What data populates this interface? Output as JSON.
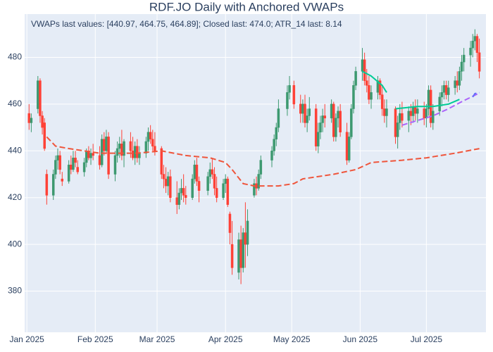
{
  "chart_data": {
    "type": "candlestick",
    "title": "RDF.JO Daily with Anchored VWAPs",
    "annotation": "VWAPs last values: [440.97, 464.75, 464.89]; Closed last: 474.0; ATR_14 last: 8.14",
    "increasing_color": "#3D9970",
    "decreasing_color": "#FF4136",
    "xlim": [
      "2024-12-31",
      "2025-07-28"
    ],
    "xticks": [
      {
        "value": "2025-01-01",
        "label": "Jan 2025"
      },
      {
        "value": "2025-02-01",
        "label": "Feb 2025"
      },
      {
        "value": "2025-03-01",
        "label": "Mar 2025"
      },
      {
        "value": "2025-04-01",
        "label": "Apr 2025"
      },
      {
        "value": "2025-05-01",
        "label": "May 2025"
      },
      {
        "value": "2025-06-01",
        "label": "Jun 2025"
      },
      {
        "value": "2025-07-01",
        "label": "Jul 2025"
      }
    ],
    "ylim": [
      362.4,
      498.5
    ],
    "yticks": [
      380,
      400,
      420,
      440,
      460,
      480
    ],
    "grid": true,
    "x": [
      "2025-01-02",
      "2025-01-03",
      "2025-01-06",
      "2025-01-07",
      "2025-01-08",
      "2025-01-09",
      "2025-01-10",
      "2025-01-13",
      "2025-01-14",
      "2025-01-15",
      "2025-01-16",
      "2025-01-17",
      "2025-01-20",
      "2025-01-21",
      "2025-01-22",
      "2025-01-23",
      "2025-01-24",
      "2025-01-27",
      "2025-01-28",
      "2025-01-29",
      "2025-01-30",
      "2025-01-31",
      "2025-02-03",
      "2025-02-04",
      "2025-02-05",
      "2025-02-06",
      "2025-02-07",
      "2025-02-10",
      "2025-02-11",
      "2025-02-12",
      "2025-02-13",
      "2025-02-14",
      "2025-02-17",
      "2025-02-18",
      "2025-02-19",
      "2025-02-20",
      "2025-02-21",
      "2025-02-24",
      "2025-02-25",
      "2025-02-26",
      "2025-02-27",
      "2025-02-28",
      "2025-03-03",
      "2025-03-04",
      "2025-03-05",
      "2025-03-06",
      "2025-03-07",
      "2025-03-10",
      "2025-03-11",
      "2025-03-12",
      "2025-03-13",
      "2025-03-14",
      "2025-03-17",
      "2025-03-18",
      "2025-03-19",
      "2025-03-20",
      "2025-03-24",
      "2025-03-25",
      "2025-03-26",
      "2025-03-27",
      "2025-03-28",
      "2025-03-31",
      "2025-04-01",
      "2025-04-02",
      "2025-04-03",
      "2025-04-04",
      "2025-04-07",
      "2025-04-08",
      "2025-04-09",
      "2025-04-10",
      "2025-04-11",
      "2025-04-14",
      "2025-04-15",
      "2025-04-16",
      "2025-04-17",
      "2025-04-22",
      "2025-04-23",
      "2025-04-24",
      "2025-04-25",
      "2025-04-29",
      "2025-04-30",
      "2025-05-02",
      "2025-05-05",
      "2025-05-06",
      "2025-05-07",
      "2025-05-08",
      "2025-05-09",
      "2025-05-12",
      "2025-05-13",
      "2025-05-14",
      "2025-05-15",
      "2025-05-16",
      "2025-05-19",
      "2025-05-20",
      "2025-05-21",
      "2025-05-22",
      "2025-05-23",
      "2025-05-26",
      "2025-05-27",
      "2025-05-28",
      "2025-05-29",
      "2025-05-30",
      "2025-06-02",
      "2025-06-03",
      "2025-06-04",
      "2025-06-05",
      "2025-06-06",
      "2025-06-09",
      "2025-06-10",
      "2025-06-11",
      "2025-06-12",
      "2025-06-13",
      "2025-06-17",
      "2025-06-18",
      "2025-06-19",
      "2025-06-20",
      "2025-06-23",
      "2025-06-24",
      "2025-06-25",
      "2025-06-26",
      "2025-06-27",
      "2025-06-30",
      "2025-07-01",
      "2025-07-02",
      "2025-07-03",
      "2025-07-04",
      "2025-07-07",
      "2025-07-08",
      "2025-07-09",
      "2025-07-10",
      "2025-07-11",
      "2025-07-14",
      "2025-07-15",
      "2025-07-16",
      "2025-07-17",
      "2025-07-18",
      "2025-07-21",
      "2025-07-22",
      "2025-07-23",
      "2025-07-24",
      "2025-07-25"
    ],
    "ohlc": [
      [
        456,
        460,
        449,
        452
      ],
      [
        452,
        456,
        448,
        454
      ],
      [
        458,
        472,
        456,
        470
      ],
      [
        470,
        471,
        452,
        455
      ],
      [
        455,
        457,
        447,
        450
      ],
      [
        452,
        454,
        440,
        441
      ],
      [
        430,
        432,
        417,
        421
      ],
      [
        421,
        432,
        419,
        430
      ],
      [
        430,
        438,
        428,
        436
      ],
      [
        436,
        441,
        432,
        438
      ],
      [
        438,
        440,
        430,
        432
      ],
      [
        428,
        431,
        425,
        427
      ],
      [
        427,
        436,
        426,
        434
      ],
      [
        434,
        438,
        430,
        432
      ],
      [
        432,
        440,
        431,
        437
      ],
      [
        437,
        440,
        433,
        435
      ],
      [
        433,
        436,
        430,
        431
      ],
      [
        431,
        437,
        429,
        435
      ],
      [
        435,
        441,
        433,
        440
      ],
      [
        440,
        442,
        436,
        437
      ],
      [
        437,
        441,
        434,
        439
      ],
      [
        439,
        443,
        436,
        438
      ],
      [
        438,
        442,
        432,
        434
      ],
      [
        434,
        447,
        433,
        445
      ],
      [
        445,
        448,
        438,
        440
      ],
      [
        440,
        449,
        439,
        446
      ],
      [
        446,
        448,
        428,
        430
      ],
      [
        430,
        440,
        427,
        438
      ],
      [
        438,
        444,
        435,
        441
      ],
      [
        441,
        446,
        437,
        443
      ],
      [
        443,
        449,
        436,
        438
      ],
      [
        438,
        445,
        433,
        444
      ],
      [
        444,
        448,
        437,
        440
      ],
      [
        440,
        446,
        436,
        437
      ],
      [
        437,
        444,
        434,
        442
      ],
      [
        442,
        445,
        435,
        437
      ],
      [
        437,
        442,
        434,
        439
      ],
      [
        439,
        446,
        437,
        444
      ],
      [
        444,
        450,
        440,
        448
      ],
      [
        448,
        451,
        443,
        445
      ],
      [
        445,
        449,
        440,
        442
      ],
      [
        442,
        448,
        438,
        440
      ],
      [
        441,
        442,
        428,
        430
      ],
      [
        430,
        434,
        424,
        428
      ],
      [
        428,
        433,
        422,
        425
      ],
      [
        425,
        431,
        421,
        429
      ],
      [
        429,
        432,
        418,
        420
      ],
      [
        420,
        427,
        413,
        417
      ],
      [
        417,
        424,
        415,
        422
      ],
      [
        422,
        428,
        419,
        424
      ],
      [
        424,
        430,
        418,
        421
      ],
      [
        421,
        425,
        417,
        420
      ],
      [
        420,
        430,
        419,
        428
      ],
      [
        428,
        436,
        426,
        434
      ],
      [
        434,
        437,
        425,
        427
      ],
      [
        427,
        429,
        418,
        423
      ],
      [
        423,
        431,
        421,
        429
      ],
      [
        429,
        435,
        426,
        432
      ],
      [
        432,
        437,
        428,
        430
      ],
      [
        430,
        433,
        421,
        424
      ],
      [
        424,
        429,
        418,
        420
      ],
      [
        420,
        428,
        419,
        426
      ],
      [
        426,
        430,
        422,
        428
      ],
      [
        428,
        429,
        416,
        417
      ],
      [
        413,
        414,
        400,
        405
      ],
      [
        400,
        410,
        387,
        390
      ],
      [
        388,
        405,
        385,
        402
      ],
      [
        402,
        408,
        383,
        390
      ],
      [
        390,
        407,
        388,
        405
      ],
      [
        405,
        418,
        390,
        400
      ],
      [
        400,
        415,
        395,
        410
      ],
      [
        421,
        428,
        420,
        426
      ],
      [
        426,
        429,
        421,
        424
      ],
      [
        424,
        432,
        423,
        430
      ],
      [
        430,
        438,
        428,
        436
      ],
      [
        436,
        442,
        433,
        440
      ],
      [
        440,
        447,
        438,
        445
      ],
      [
        445,
        452,
        442,
        450
      ],
      [
        450,
        462,
        448,
        458
      ],
      [
        458,
        468,
        455,
        465
      ],
      [
        465,
        472,
        462,
        468
      ],
      [
        468,
        470,
        458,
        460
      ],
      [
        460,
        464,
        452,
        456
      ],
      [
        456,
        462,
        452,
        460
      ],
      [
        460,
        464,
        450,
        452
      ],
      [
        452,
        458,
        448,
        455
      ],
      [
        455,
        463,
        453,
        458
      ],
      [
        458,
        460,
        440,
        442
      ],
      [
        442,
        452,
        439,
        448
      ],
      [
        448,
        455,
        445,
        452
      ],
      [
        452,
        458,
        448,
        455
      ],
      [
        455,
        460,
        450,
        454
      ],
      [
        454,
        462,
        452,
        460
      ],
      [
        460,
        461,
        444,
        446
      ],
      [
        446,
        456,
        444,
        454
      ],
      [
        454,
        459,
        450,
        457
      ],
      [
        457,
        460,
        446,
        448
      ],
      [
        448,
        452,
        434,
        436
      ],
      [
        436,
        448,
        435,
        446
      ],
      [
        446,
        460,
        445,
        458
      ],
      [
        458,
        470,
        456,
        468
      ],
      [
        468,
        476,
        466,
        474
      ],
      [
        474,
        484,
        470,
        479
      ],
      [
        479,
        482,
        468,
        470
      ],
      [
        470,
        475,
        465,
        468
      ],
      [
        468,
        472,
        460,
        462
      ],
      [
        462,
        468,
        458,
        465
      ],
      [
        465,
        472,
        462,
        470
      ],
      [
        470,
        471,
        462,
        464
      ],
      [
        464,
        468,
        455,
        458
      ],
      [
        458,
        462,
        452,
        455
      ],
      [
        455,
        462,
        450,
        458
      ],
      [
        458,
        459,
        443,
        446
      ],
      [
        446,
        455,
        441,
        452
      ],
      [
        452,
        460,
        449,
        456
      ],
      [
        456,
        461,
        450,
        453
      ],
      [
        453,
        459,
        448,
        457
      ],
      [
        457,
        460,
        451,
        455
      ],
      [
        455,
        461,
        452,
        459
      ],
      [
        459,
        462,
        453,
        456
      ],
      [
        456,
        462,
        452,
        458
      ],
      [
        458,
        461,
        451,
        454
      ],
      [
        454,
        460,
        450,
        458
      ],
      [
        458,
        468,
        455,
        466
      ],
      [
        466,
        468,
        450,
        452
      ],
      [
        452,
        460,
        449,
        457
      ],
      [
        457,
        465,
        455,
        463
      ],
      [
        463,
        468,
        459,
        465
      ],
      [
        465,
        470,
        462,
        468
      ],
      [
        468,
        470,
        462,
        464
      ],
      [
        464,
        470,
        461,
        467
      ],
      [
        467,
        472,
        464,
        470
      ],
      [
        470,
        474,
        465,
        468
      ],
      [
        468,
        476,
        466,
        474
      ],
      [
        474,
        481,
        470,
        478
      ],
      [
        478,
        484,
        474,
        481
      ],
      [
        481,
        487,
        476,
        484
      ],
      [
        484,
        490,
        480,
        487
      ],
      [
        487,
        492,
        483,
        489
      ],
      [
        489,
        490,
        478,
        482
      ],
      [
        482,
        488,
        471,
        474
      ]
    ],
    "lines": [
      {
        "color": "#EF553B",
        "dash": true,
        "x": [
          "2025-01-10",
          "2025-01-14",
          "2025-01-20",
          "2025-02-03",
          "2025-02-20",
          "2025-03-03",
          "2025-03-14",
          "2025-03-25",
          "2025-04-01",
          "2025-04-04",
          "2025-04-09",
          "2025-04-14",
          "2025-04-25",
          "2025-05-02",
          "2025-05-06",
          "2025-05-20",
          "2025-05-30",
          "2025-06-06",
          "2025-06-20",
          "2025-07-01",
          "2025-07-14",
          "2025-07-25"
        ],
        "values": [
          446,
          442,
          441,
          439,
          439,
          440,
          438,
          437,
          435,
          432,
          426,
          425,
          425,
          426,
          428,
          430,
          432,
          435,
          436,
          437,
          439,
          440.97
        ]
      },
      {
        "color": "#00CC96",
        "dash": false,
        "x": [
          "2025-06-02",
          "2025-06-06",
          "2025-06-11",
          "2025-06-13",
          "2025-06-16",
          "2025-06-17",
          "2025-06-27",
          "2025-07-04",
          "2025-07-11",
          "2025-07-16"
        ],
        "values": [
          474,
          472,
          468,
          465,
          null,
          458,
          459,
          459,
          460,
          462
        ]
      },
      {
        "color": "#AB63FA",
        "dash": true,
        "x": [
          "2025-06-20",
          "2025-06-27",
          "2025-07-04",
          "2025-07-11",
          "2025-07-17",
          "2025-07-25"
        ],
        "values": [
          451,
          453,
          455,
          458,
          461,
          464.75
        ]
      },
      {
        "color": "#636EFA",
        "dash": true,
        "x": [
          "2025-07-22",
          "2025-07-23",
          "2025-07-25"
        ],
        "values": [
          463,
          464.5,
          464.89
        ]
      }
    ]
  }
}
